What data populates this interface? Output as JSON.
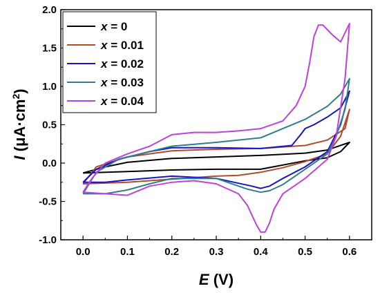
{
  "chart_data": {
    "type": "line",
    "xlabel_var": "E",
    "xlabel_unit": " (V)",
    "ylabel_var": "I",
    "ylabel_unit": " (μA·cm",
    "ylabel_sup": "2",
    "ylabel_close": ")",
    "xlim": [
      -0.05,
      0.65
    ],
    "ylim": [
      -1.0,
      2.0
    ],
    "xticks": [
      "0.0",
      "0.1",
      "0.2",
      "0.3",
      "0.4",
      "0.5",
      "0.6"
    ],
    "yticks": [
      "-1.0",
      "-0.5",
      "0.0",
      "0.5",
      "1.0",
      "1.5",
      "2.0"
    ],
    "legend_position": "top-left",
    "legend_var": "x",
    "series": [
      {
        "name": " = 0",
        "color": "#000000",
        "points": [
          [
            0.0,
            -0.13
          ],
          [
            0.05,
            -0.05
          ],
          [
            0.1,
            0.01
          ],
          [
            0.2,
            0.06
          ],
          [
            0.3,
            0.08
          ],
          [
            0.4,
            0.1
          ],
          [
            0.5,
            0.13
          ],
          [
            0.55,
            0.17
          ],
          [
            0.6,
            0.27
          ],
          [
            0.58,
            0.15
          ],
          [
            0.55,
            0.07
          ],
          [
            0.5,
            0.03
          ],
          [
            0.4,
            -0.08
          ],
          [
            0.3,
            -0.08
          ],
          [
            0.2,
            -0.09
          ],
          [
            0.1,
            -0.11
          ],
          [
            0.0,
            -0.13
          ]
        ]
      },
      {
        "name": " = 0.01",
        "color": "#b5472a",
        "points": [
          [
            0.0,
            -0.27
          ],
          [
            0.03,
            -0.05
          ],
          [
            0.1,
            0.08
          ],
          [
            0.2,
            0.16
          ],
          [
            0.3,
            0.18
          ],
          [
            0.4,
            0.19
          ],
          [
            0.5,
            0.23
          ],
          [
            0.55,
            0.3
          ],
          [
            0.59,
            0.45
          ],
          [
            0.6,
            0.7
          ],
          [
            0.58,
            0.35
          ],
          [
            0.55,
            0.12
          ],
          [
            0.5,
            0.02
          ],
          [
            0.45,
            -0.06
          ],
          [
            0.4,
            -0.12
          ],
          [
            0.35,
            -0.16
          ],
          [
            0.3,
            -0.17
          ],
          [
            0.2,
            -0.21
          ],
          [
            0.1,
            -0.25
          ],
          [
            0.0,
            -0.27
          ]
        ]
      },
      {
        "name": " = 0.02",
        "color": "#1414c8",
        "points": [
          [
            0.0,
            -0.25
          ],
          [
            0.03,
            -0.08
          ],
          [
            0.08,
            0.05
          ],
          [
            0.15,
            0.15
          ],
          [
            0.2,
            0.2
          ],
          [
            0.3,
            0.2
          ],
          [
            0.4,
            0.19
          ],
          [
            0.47,
            0.23
          ],
          [
            0.49,
            0.37
          ],
          [
            0.5,
            0.45
          ],
          [
            0.52,
            0.5
          ],
          [
            0.55,
            0.6
          ],
          [
            0.58,
            0.72
          ],
          [
            0.6,
            0.94
          ],
          [
            0.58,
            0.5
          ],
          [
            0.55,
            0.15
          ],
          [
            0.5,
            -0.05
          ],
          [
            0.45,
            -0.2
          ],
          [
            0.42,
            -0.3
          ],
          [
            0.4,
            -0.33
          ],
          [
            0.38,
            -0.3
          ],
          [
            0.3,
            -0.2
          ],
          [
            0.2,
            -0.17
          ],
          [
            0.1,
            -0.22
          ],
          [
            0.05,
            -0.25
          ],
          [
            0.0,
            -0.25
          ]
        ]
      },
      {
        "name": " = 0.03",
        "color": "#2e7d8c",
        "points": [
          [
            0.0,
            -0.4
          ],
          [
            0.03,
            -0.12
          ],
          [
            0.08,
            0.05
          ],
          [
            0.15,
            0.15
          ],
          [
            0.2,
            0.22
          ],
          [
            0.3,
            0.27
          ],
          [
            0.4,
            0.33
          ],
          [
            0.45,
            0.45
          ],
          [
            0.5,
            0.57
          ],
          [
            0.55,
            0.74
          ],
          [
            0.58,
            0.9
          ],
          [
            0.6,
            1.1
          ],
          [
            0.59,
            0.7
          ],
          [
            0.57,
            0.35
          ],
          [
            0.55,
            0.12
          ],
          [
            0.5,
            -0.08
          ],
          [
            0.45,
            -0.28
          ],
          [
            0.42,
            -0.36
          ],
          [
            0.4,
            -0.38
          ],
          [
            0.37,
            -0.34
          ],
          [
            0.3,
            -0.2
          ],
          [
            0.2,
            -0.2
          ],
          [
            0.15,
            -0.27
          ],
          [
            0.1,
            -0.35
          ],
          [
            0.05,
            -0.4
          ],
          [
            0.0,
            -0.4
          ]
        ]
      },
      {
        "name": " = 0.04",
        "color": "#bf3fe0",
        "points": [
          [
            0.0,
            -0.38
          ],
          [
            0.02,
            -0.2
          ],
          [
            0.05,
            0.0
          ],
          [
            0.1,
            0.12
          ],
          [
            0.15,
            0.22
          ],
          [
            0.2,
            0.37
          ],
          [
            0.25,
            0.4
          ],
          [
            0.3,
            0.4
          ],
          [
            0.35,
            0.42
          ],
          [
            0.4,
            0.45
          ],
          [
            0.45,
            0.55
          ],
          [
            0.48,
            0.75
          ],
          [
            0.5,
            1.0
          ],
          [
            0.51,
            1.3
          ],
          [
            0.52,
            1.65
          ],
          [
            0.53,
            1.8
          ],
          [
            0.54,
            1.8
          ],
          [
            0.56,
            1.68
          ],
          [
            0.58,
            1.58
          ],
          [
            0.6,
            1.82
          ],
          [
            0.59,
            1.1
          ],
          [
            0.57,
            0.35
          ],
          [
            0.55,
            0.05
          ],
          [
            0.5,
            -0.2
          ],
          [
            0.45,
            -0.4
          ],
          [
            0.43,
            -0.6
          ],
          [
            0.42,
            -0.78
          ],
          [
            0.41,
            -0.9
          ],
          [
            0.4,
            -0.9
          ],
          [
            0.39,
            -0.8
          ],
          [
            0.37,
            -0.55
          ],
          [
            0.35,
            -0.4
          ],
          [
            0.3,
            -0.27
          ],
          [
            0.25,
            -0.23
          ],
          [
            0.2,
            -0.25
          ],
          [
            0.15,
            -0.3
          ],
          [
            0.1,
            -0.42
          ],
          [
            0.05,
            -0.4
          ],
          [
            0.0,
            -0.38
          ]
        ]
      }
    ]
  }
}
